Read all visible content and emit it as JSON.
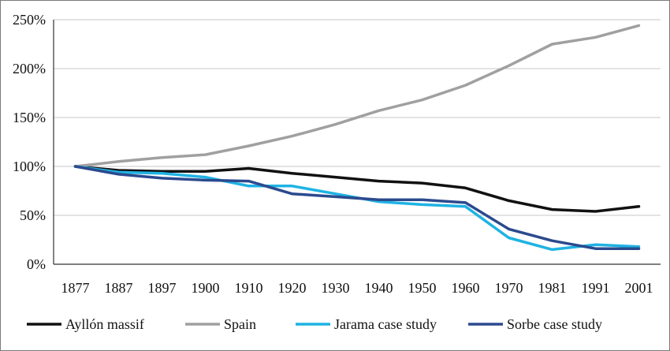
{
  "chart_data": {
    "type": "line",
    "title": "",
    "xlabel": "",
    "ylabel": "",
    "categories": [
      "1877",
      "1887",
      "1897",
      "1900",
      "1910",
      "1920",
      "1930",
      "1940",
      "1950",
      "1960",
      "1970",
      "1981",
      "1991",
      "2001"
    ],
    "ylim": [
      0,
      250
    ],
    "y_ticks": [
      0,
      50,
      100,
      150,
      200,
      250
    ],
    "y_tick_labels": [
      "0%",
      "50%",
      "100%",
      "150%",
      "200%",
      "250%"
    ],
    "grid": "horizontal",
    "legend_position": "bottom",
    "series": [
      {
        "name": "Ayllón massif",
        "color": "#111111",
        "values": [
          100,
          96,
          95,
          95,
          98,
          93,
          89,
          85,
          83,
          78,
          65,
          56,
          54,
          59
        ]
      },
      {
        "name": "Spain",
        "color": "#a0a0a0",
        "values": [
          100,
          105,
          109,
          112,
          121,
          131,
          143,
          157,
          168,
          183,
          203,
          225,
          232,
          244
        ]
      },
      {
        "name": "Jarama case study",
        "color": "#1fb3e3",
        "values": [
          100,
          94,
          93,
          89,
          80,
          80,
          72,
          64,
          61,
          59,
          27,
          15,
          20,
          18
        ]
      },
      {
        "name": "Sorbe case study",
        "color": "#2b4a8e",
        "values": [
          100,
          92,
          88,
          86,
          85,
          72,
          69,
          66,
          66,
          63,
          36,
          24,
          16,
          16
        ]
      }
    ]
  }
}
